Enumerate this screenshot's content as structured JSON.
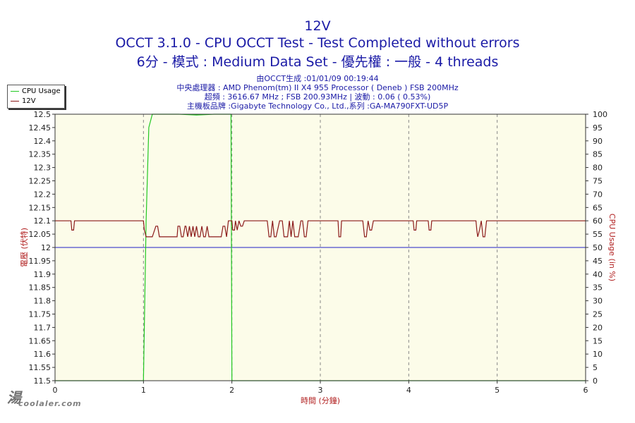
{
  "header": {
    "title": "12V",
    "line2": "OCCT 3.1.0 - CPU OCCT Test - Test Completed without errors",
    "line3": "6分 - 模式 : Medium Data Set - 優先權 : 一般 - 4 threads",
    "info": [
      "由OCCT生成 :01/01/09 00:19:44",
      "中央處理器 : AMD Phenom(tm) II X4 955 Processor ( Deneb ) FSB 200MHz",
      "超頻 : 3616.67 MHz ; FSB 200.93MHz | 波動 : 0.06 ( 0.53%)",
      "主機板品牌 :Gigabyte Technology Co., Ltd.,系列 :GA-MA790FXT-UD5P"
    ]
  },
  "legend": {
    "cpu_label": "CPU Usage",
    "v_label": "12V"
  },
  "watermark": "coolaler.com",
  "colors": {
    "cpu": "#22c822",
    "voltage": "#8b1a1a",
    "reference": "#1f1fc8",
    "plot_bg": "#fcfce9",
    "axis_label": "#b22222"
  },
  "chart_data": {
    "type": "line",
    "xlabel": "時間 (分鐘)",
    "ylabel": "電壓 (伏特)",
    "y2label": "CPU Usage (in %)",
    "xlim": [
      0,
      6
    ],
    "ylim": [
      11.5,
      12.5
    ],
    "y2lim": [
      0,
      100
    ],
    "x_ticks": [
      0,
      1,
      2,
      3,
      4,
      5,
      6
    ],
    "y_ticks": [
      12.5,
      12.45,
      12.4,
      12.35,
      12.3,
      12.25,
      12.2,
      12.15,
      12.1,
      12.05,
      12,
      11.95,
      11.9,
      11.85,
      11.8,
      11.75,
      11.7,
      11.65,
      11.6,
      11.55,
      11.5
    ],
    "y2_ticks": [
      100,
      95,
      90,
      85,
      80,
      75,
      70,
      65,
      60,
      55,
      50,
      45,
      40,
      35,
      30,
      25,
      20,
      15,
      10,
      5,
      0
    ],
    "grid": true,
    "legend_position": "top-left",
    "reference_line": 12.0,
    "series": [
      {
        "name": "CPU Usage",
        "axis": "right",
        "x": [
          0.0,
          0.99,
          1.0,
          1.03,
          1.06,
          1.1,
          1.2,
          1.4,
          1.6,
          1.8,
          1.95,
          1.99,
          2.0,
          2.03,
          2.06,
          6.0
        ],
        "y": [
          0,
          0,
          0,
          60,
          95,
          100,
          100,
          100,
          99.7,
          100,
          100,
          100,
          0,
          0,
          0,
          0
        ]
      },
      {
        "name": "12V",
        "axis": "left",
        "x": [
          0.0,
          0.18,
          0.19,
          0.2,
          0.21,
          0.22,
          1.0,
          1.01,
          1.03,
          1.05,
          1.1,
          1.14,
          1.16,
          1.18,
          1.19,
          1.2,
          1.38,
          1.39,
          1.41,
          1.43,
          1.45,
          1.47,
          1.48,
          1.5,
          1.52,
          1.54,
          1.56,
          1.58,
          1.6,
          1.62,
          1.64,
          1.66,
          1.68,
          1.7,
          1.72,
          1.74,
          1.76,
          1.8,
          1.85,
          1.88,
          1.9,
          1.92,
          1.94,
          1.96,
          1.98,
          2.0,
          2.01,
          2.03,
          2.04,
          2.06,
          2.08,
          2.1,
          2.12,
          2.14,
          2.4,
          2.42,
          2.44,
          2.46,
          2.48,
          2.5,
          2.54,
          2.57,
          2.59,
          2.61,
          2.63,
          2.65,
          2.67,
          2.69,
          2.71,
          2.75,
          2.78,
          2.8,
          2.82,
          2.84,
          2.86,
          3.2,
          3.21,
          3.22,
          3.23,
          3.24,
          3.48,
          3.5,
          3.52,
          3.54,
          3.56,
          3.58,
          3.6,
          3.62,
          4.05,
          4.06,
          4.07,
          4.08,
          4.09,
          4.22,
          4.23,
          4.24,
          4.25,
          4.26,
          4.76,
          4.77,
          4.78,
          4.8,
          4.82,
          4.84,
          4.86,
          4.88,
          4.9,
          6.0
        ],
        "y": [
          12.1,
          12.1,
          12.065,
          12.065,
          12.065,
          12.1,
          12.1,
          12.065,
          12.04,
          12.04,
          12.04,
          12.08,
          12.08,
          12.04,
          12.04,
          12.04,
          12.04,
          12.08,
          12.08,
          12.04,
          12.04,
          12.08,
          12.08,
          12.04,
          12.08,
          12.04,
          12.08,
          12.04,
          12.08,
          12.04,
          12.04,
          12.08,
          12.04,
          12.04,
          12.08,
          12.04,
          12.04,
          12.04,
          12.04,
          12.04,
          12.08,
          12.08,
          12.04,
          12.1,
          12.1,
          12.1,
          12.065,
          12.065,
          12.1,
          12.065,
          12.1,
          12.08,
          12.08,
          12.1,
          12.1,
          12.04,
          12.04,
          12.1,
          12.04,
          12.04,
          12.1,
          12.1,
          12.04,
          12.04,
          12.04,
          12.1,
          12.04,
          12.1,
          12.04,
          12.04,
          12.1,
          12.1,
          12.04,
          12.04,
          12.1,
          12.1,
          12.04,
          12.04,
          12.04,
          12.1,
          12.1,
          12.04,
          12.04,
          12.1,
          12.065,
          12.065,
          12.1,
          12.1,
          12.1,
          12.065,
          12.065,
          12.065,
          12.1,
          12.1,
          12.065,
          12.065,
          12.065,
          12.1,
          12.1,
          12.065,
          12.04,
          12.065,
          12.1,
          12.04,
          12.04,
          12.1,
          12.1,
          12.1
        ]
      }
    ]
  }
}
